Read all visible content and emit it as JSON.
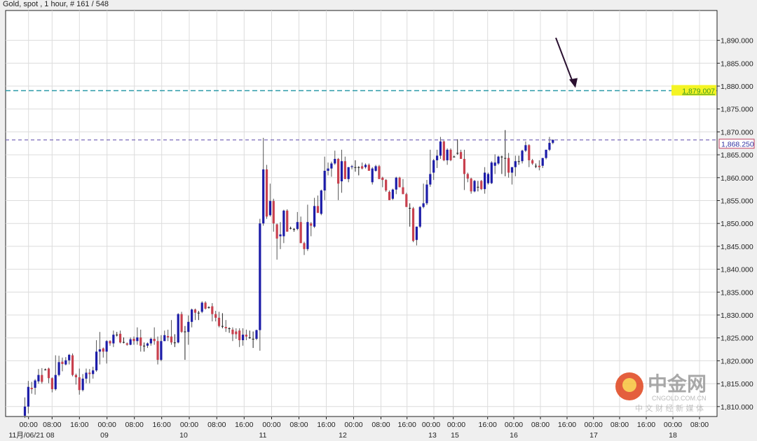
{
  "header": {
    "title": "Gold, spot , 1 hour, # 161 / 548"
  },
  "colors": {
    "bull": "#1c1ca8",
    "bear": "#c8404e",
    "doji": "#222222",
    "resistance_line": "#2a9aa8",
    "current_line": "#7a6ab8",
    "highlight": "#f4f424",
    "arrow": "#2a1030"
  },
  "watermark": {
    "logo_text": "中金网",
    "domain": "CNGOLD.COM.CN",
    "tagline": "中 文 财 经 新 媒 体"
  },
  "chart_data": {
    "type": "candlestick",
    "title": "Gold, spot , 1 hour, # 161 / 548",
    "ylim": [
      1807.6,
      1896.6
    ],
    "grid": true,
    "y_ticks": [
      "1,810.000",
      "1,815.000",
      "1,820.000",
      "1,825.000",
      "1,830.000",
      "1,835.000",
      "1,840.000",
      "1,845.000",
      "1,850.000",
      "1,855.000",
      "1,860.000",
      "1,865.000",
      "1,870.000",
      "1,875.000",
      "1,880.000",
      "1,885.000",
      "1,890.000"
    ],
    "y_tick_values": [
      1810,
      1815,
      1820,
      1825,
      1830,
      1835,
      1840,
      1845,
      1850,
      1855,
      1860,
      1865,
      1870,
      1875,
      1880,
      1885,
      1890
    ],
    "x_time_ticks": [
      "00:00",
      "08:00",
      "16:00",
      "00:00",
      "08:00",
      "16:00",
      "00:00",
      "08:00",
      "16:00",
      "00:00",
      "08:00",
      "16:00",
      "00:00",
      "08:00",
      "16:00",
      "00:00",
      "00:00",
      "16:00",
      "00:00",
      "08:00",
      "16:00",
      "00:00",
      "08:00",
      "16:00",
      "00:00",
      "08:00"
    ],
    "x_date_ticks": [
      "11月/06/21 08",
      "09",
      "10",
      "11",
      "12",
      "13",
      "15",
      "16",
      "17",
      "18"
    ],
    "horizontal_lines": [
      {
        "value": 1879.007,
        "label": "1,879.007",
        "style": "dashed",
        "color": "#2a9aa8",
        "highlighted": true
      },
      {
        "value": 1868.25,
        "label": "1,868.250",
        "style": "dashed",
        "color": "#7a6ab8",
        "boxed": true
      }
    ],
    "annotation": {
      "type": "arrow",
      "points_to_value": 1879.007
    },
    "ohlc": [
      [
        1808.0,
        1812.0,
        1807.5,
        1810.0
      ],
      [
        1810.0,
        1815.6,
        1808.5,
        1814.3
      ],
      [
        1814.1,
        1815.4,
        1812.8,
        1813.8
      ],
      [
        1814.1,
        1816.0,
        1812.6,
        1815.7
      ],
      [
        1815.5,
        1818.2,
        1815.0,
        1816.9
      ],
      [
        1816.9,
        1818.4,
        1815.0,
        1815.4
      ],
      [
        1818.0,
        1818.3,
        1817.9,
        1818.1
      ],
      [
        1818.3,
        1818.5,
        1815.1,
        1816.2
      ],
      [
        1816.2,
        1816.4,
        1813.1,
        1813.8
      ],
      [
        1813.8,
        1821.2,
        1813.5,
        1816.9
      ],
      [
        1816.9,
        1821.1,
        1816.6,
        1819.7
      ],
      [
        1819.8,
        1820.7,
        1817.7,
        1819.3
      ],
      [
        1819.2,
        1820.8,
        1819.0,
        1820.1
      ],
      [
        1820.1,
        1821.5,
        1819.2,
        1821.3
      ],
      [
        1821.2,
        1821.6,
        1816.6,
        1816.9
      ],
      [
        1816.9,
        1817.2,
        1814.8,
        1816.4
      ],
      [
        1816.4,
        1818.3,
        1812.6,
        1813.6
      ],
      [
        1813.6,
        1817.1,
        1813.3,
        1816.1
      ],
      [
        1816.1,
        1818.3,
        1815.1,
        1817.4
      ],
      [
        1817.4,
        1818.2,
        1815.1,
        1817.1
      ],
      [
        1817.1,
        1818.7,
        1816.1,
        1817.9
      ],
      [
        1817.9,
        1824.5,
        1817.6,
        1822.0
      ],
      [
        1822.0,
        1826.3,
        1819.2,
        1822.5
      ],
      [
        1822.7,
        1822.9,
        1820.7,
        1822.0
      ],
      [
        1822.0,
        1824.5,
        1819.4,
        1824.3
      ],
      [
        1824.3,
        1824.5,
        1823.3,
        1823.8
      ],
      [
        1823.8,
        1826.6,
        1823.0,
        1825.7
      ],
      [
        1825.6,
        1826.3,
        1825.3,
        1825.7
      ],
      [
        1825.9,
        1826.6,
        1823.8,
        1824.0
      ],
      [
        1824.1,
        1825.1,
        1823.8,
        1824.0
      ],
      [
        1823.8,
        1824.0,
        1823.3,
        1823.5
      ],
      [
        1823.5,
        1825.1,
        1823.4,
        1824.7
      ],
      [
        1824.8,
        1825.3,
        1823.5,
        1824.3
      ],
      [
        1824.3,
        1827.3,
        1823.5,
        1825.1
      ],
      [
        1825.1,
        1826.8,
        1822.0,
        1823.3
      ],
      [
        1823.3,
        1824.0,
        1822.0,
        1823.2
      ],
      [
        1823.3,
        1824.0,
        1822.8,
        1823.8
      ],
      [
        1823.8,
        1825.1,
        1823.3,
        1824.8
      ],
      [
        1824.8,
        1827.3,
        1823.5,
        1824.3
      ],
      [
        1824.3,
        1825.3,
        1819.2,
        1820.2
      ],
      [
        1820.2,
        1825.6,
        1819.9,
        1824.3
      ],
      [
        1824.3,
        1826.6,
        1824.3,
        1825.6
      ],
      [
        1825.4,
        1826.8,
        1824.3,
        1825.1
      ],
      [
        1825.3,
        1828.9,
        1823.5,
        1824.0
      ],
      [
        1824.0,
        1825.8,
        1823.0,
        1824.0
      ],
      [
        1824.0,
        1830.4,
        1823.8,
        1830.2
      ],
      [
        1830.2,
        1830.7,
        1826.1,
        1826.3
      ],
      [
        1826.4,
        1827.6,
        1820.2,
        1826.3
      ],
      [
        1826.3,
        1829.9,
        1823.5,
        1828.5
      ],
      [
        1828.5,
        1831.4,
        1827.3,
        1831.2
      ],
      [
        1831.2,
        1831.4,
        1828.9,
        1830.5
      ],
      [
        1830.5,
        1830.9,
        1828.9,
        1830.5
      ],
      [
        1830.7,
        1833.0,
        1830.4,
        1832.7
      ],
      [
        1832.7,
        1833.0,
        1831.2,
        1831.4
      ],
      [
        1831.7,
        1831.9,
        1831.4,
        1831.7
      ],
      [
        1831.9,
        1832.6,
        1828.6,
        1830.2
      ],
      [
        1830.2,
        1830.9,
        1828.6,
        1829.4
      ],
      [
        1829.4,
        1830.7,
        1827.3,
        1827.6
      ],
      [
        1827.6,
        1830.4,
        1827.1,
        1827.6
      ],
      [
        1827.4,
        1828.9,
        1826.3,
        1827.1
      ],
      [
        1827.1,
        1827.3,
        1826.1,
        1827.1
      ],
      [
        1826.8,
        1827.3,
        1824.3,
        1825.8
      ],
      [
        1826.4,
        1827.1,
        1824.8,
        1825.8
      ],
      [
        1826.6,
        1827.1,
        1823.0,
        1824.5
      ],
      [
        1824.5,
        1827.1,
        1823.3,
        1825.7
      ],
      [
        1825.7,
        1826.8,
        1824.5,
        1825.3
      ],
      [
        1825.1,
        1826.6,
        1824.8,
        1825.1
      ],
      [
        1824.8,
        1826.4,
        1822.8,
        1824.8
      ],
      [
        1824.8,
        1826.8,
        1824.5,
        1826.7
      ],
      [
        1826.7,
        1851.0,
        1822.2,
        1850.0
      ],
      [
        1850.0,
        1868.7,
        1849.5,
        1861.8
      ],
      [
        1861.8,
        1862.8,
        1851.0,
        1851.5
      ],
      [
        1851.8,
        1858.7,
        1851.5,
        1854.9
      ],
      [
        1854.9,
        1855.4,
        1848.2,
        1850.0
      ],
      [
        1849.8,
        1850.0,
        1842.1,
        1846.7
      ],
      [
        1847.2,
        1850.3,
        1844.4,
        1847.6
      ],
      [
        1847.2,
        1853.0,
        1845.7,
        1852.8
      ],
      [
        1852.8,
        1853.1,
        1848.2,
        1848.2
      ],
      [
        1849.0,
        1849.3,
        1848.7,
        1849.0
      ],
      [
        1848.8,
        1849.0,
        1848.2,
        1848.7
      ],
      [
        1848.8,
        1852.5,
        1848.5,
        1850.3
      ],
      [
        1850.3,
        1851.5,
        1845.7,
        1845.7
      ],
      [
        1845.7,
        1846.0,
        1843.1,
        1844.4
      ],
      [
        1844.4,
        1854.1,
        1844.0,
        1850.3
      ],
      [
        1850.0,
        1850.3,
        1847.2,
        1849.5
      ],
      [
        1849.3,
        1855.6,
        1849.0,
        1853.8
      ],
      [
        1853.8,
        1856.1,
        1852.3,
        1852.3
      ],
      [
        1852.1,
        1857.4,
        1851.8,
        1857.2
      ],
      [
        1857.2,
        1864.6,
        1855.1,
        1861.5
      ],
      [
        1861.5,
        1863.3,
        1860.5,
        1862.0
      ],
      [
        1862.0,
        1863.5,
        1860.2,
        1863.1
      ],
      [
        1863.1,
        1865.9,
        1862.8,
        1864.1
      ],
      [
        1864.1,
        1864.3,
        1855.1,
        1858.7
      ],
      [
        1859.2,
        1866.1,
        1856.7,
        1863.6
      ],
      [
        1863.6,
        1864.6,
        1859.7,
        1859.7
      ],
      [
        1859.7,
        1862.3,
        1859.0,
        1862.3
      ],
      [
        1862.3,
        1862.8,
        1861.8,
        1862.5
      ],
      [
        1862.3,
        1863.8,
        1861.3,
        1862.3
      ],
      [
        1862.3,
        1862.5,
        1860.5,
        1862.3
      ],
      [
        1862.5,
        1863.3,
        1861.8,
        1862.0
      ],
      [
        1862.3,
        1863.1,
        1862.0,
        1862.8
      ],
      [
        1862.8,
        1863.1,
        1861.5,
        1861.5
      ],
      [
        1859.0,
        1862.3,
        1858.5,
        1862.0
      ],
      [
        1861.5,
        1862.8,
        1861.3,
        1862.5
      ],
      [
        1862.5,
        1862.8,
        1859.7,
        1859.7
      ],
      [
        1860.0,
        1860.2,
        1857.9,
        1859.5
      ],
      [
        1859.5,
        1859.7,
        1856.9,
        1857.2
      ],
      [
        1856.9,
        1857.2,
        1855.1,
        1855.1
      ],
      [
        1855.4,
        1857.6,
        1855.1,
        1857.4
      ],
      [
        1857.4,
        1860.2,
        1856.4,
        1860.0
      ],
      [
        1860.0,
        1860.2,
        1857.9,
        1857.9
      ],
      [
        1857.9,
        1859.7,
        1856.4,
        1856.4
      ],
      [
        1856.4,
        1856.7,
        1853.6,
        1853.6
      ],
      [
        1853.4,
        1854.4,
        1849.3,
        1853.3
      ],
      [
        1853.3,
        1853.6,
        1845.9,
        1846.2
      ],
      [
        1846.4,
        1849.3,
        1845.2,
        1849.3
      ],
      [
        1849.3,
        1853.8,
        1849.0,
        1853.6
      ],
      [
        1853.6,
        1858.7,
        1853.3,
        1854.4
      ],
      [
        1854.4,
        1859.5,
        1854.0,
        1858.5
      ],
      [
        1858.5,
        1866.1,
        1858.0,
        1860.8
      ],
      [
        1861.1,
        1864.1,
        1859.5,
        1863.8
      ],
      [
        1863.8,
        1866.1,
        1862.1,
        1864.8
      ],
      [
        1864.8,
        1868.9,
        1864.1,
        1867.9
      ],
      [
        1867.9,
        1868.1,
        1863.6,
        1863.8
      ],
      [
        1863.8,
        1866.4,
        1862.8,
        1866.1
      ],
      [
        1866.1,
        1866.4,
        1863.6,
        1863.8
      ],
      [
        1864.6,
        1864.8,
        1864.4,
        1864.6
      ],
      [
        1865.3,
        1868.4,
        1865.0,
        1865.4
      ],
      [
        1865.6,
        1866.1,
        1864.1,
        1864.1
      ],
      [
        1864.1,
        1866.1,
        1857.3,
        1860.8
      ],
      [
        1860.8,
        1861.1,
        1859.0,
        1859.8
      ],
      [
        1859.8,
        1860.0,
        1856.5,
        1857.0
      ],
      [
        1857.0,
        1859.5,
        1856.8,
        1859.3
      ],
      [
        1858.0,
        1859.3,
        1857.0,
        1858.0
      ],
      [
        1859.3,
        1859.5,
        1857.3,
        1857.5
      ],
      [
        1857.5,
        1862.3,
        1856.5,
        1861.1
      ],
      [
        1858.8,
        1861.1,
        1858.5,
        1860.8
      ],
      [
        1858.8,
        1863.6,
        1858.6,
        1863.3
      ],
      [
        1862.6,
        1865.1,
        1860.8,
        1863.3
      ],
      [
        1863.1,
        1864.8,
        1862.8,
        1864.6
      ],
      [
        1864.6,
        1864.8,
        1860.8,
        1864.6
      ],
      [
        1864.3,
        1870.4,
        1860.3,
        1864.3
      ],
      [
        1864.3,
        1865.4,
        1860.0,
        1861.1
      ],
      [
        1861.1,
        1862.3,
        1858.5,
        1862.3
      ],
      [
        1862.3,
        1864.8,
        1860.3,
        1863.6
      ],
      [
        1863.6,
        1864.8,
        1862.8,
        1863.6
      ],
      [
        1863.6,
        1866.1,
        1863.1,
        1865.9
      ],
      [
        1865.9,
        1867.9,
        1865.6,
        1867.1
      ],
      [
        1867.1,
        1867.3,
        1862.3,
        1863.8
      ],
      [
        1863.8,
        1864.1,
        1862.8,
        1863.1
      ],
      [
        1862.6,
        1863.1,
        1862.1,
        1862.6
      ],
      [
        1862.6,
        1863.8,
        1861.6,
        1862.3
      ],
      [
        1862.6,
        1864.3,
        1862.1,
        1864.3
      ],
      [
        1864.3,
        1866.1,
        1864.0,
        1866.1
      ],
      [
        1866.1,
        1868.9,
        1865.8,
        1867.6
      ],
      [
        1867.6,
        1868.4,
        1867.3,
        1868.25
      ]
    ]
  }
}
